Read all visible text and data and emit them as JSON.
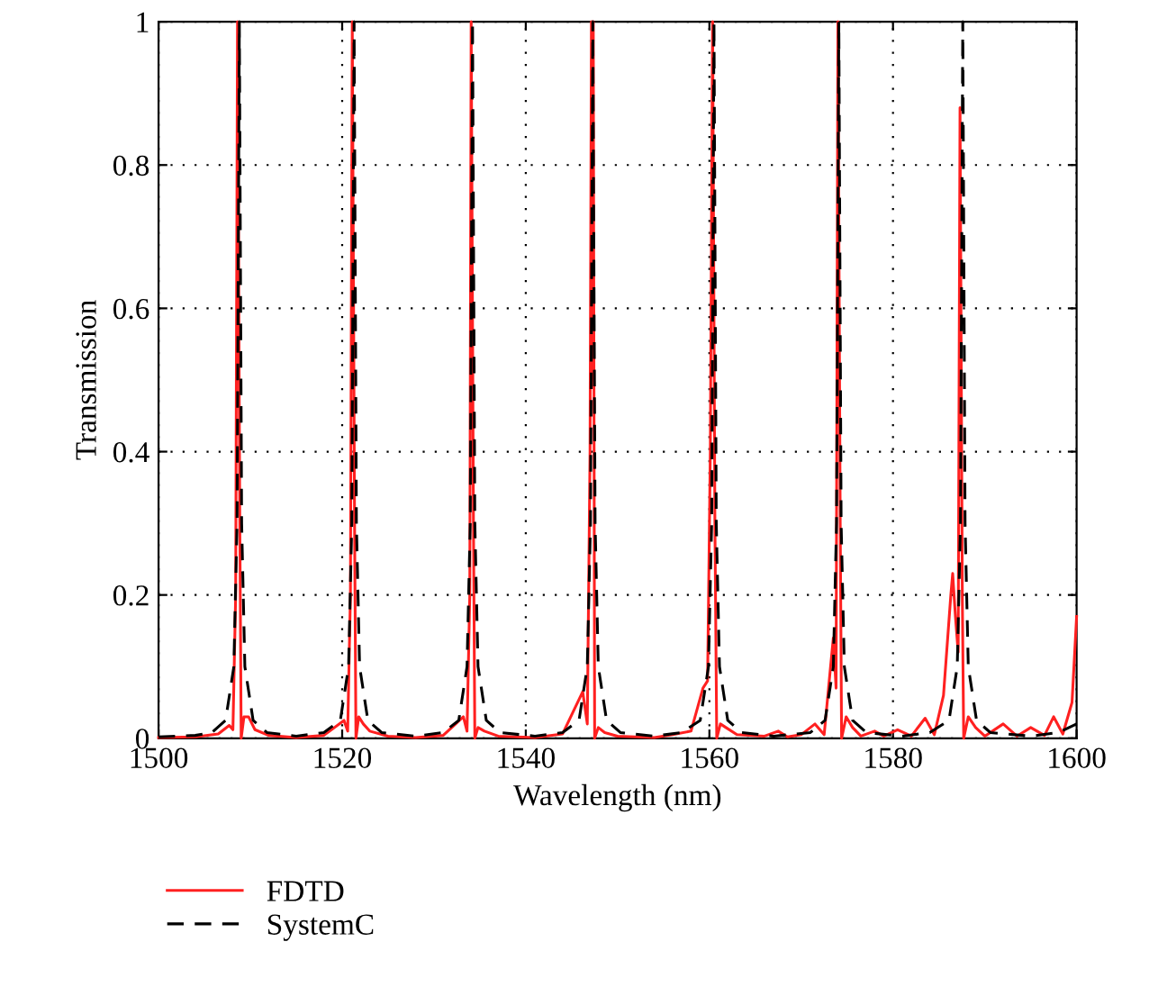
{
  "chart_data": {
    "type": "line",
    "xlabel": "Wavelength (nm)",
    "ylabel": "Transmission",
    "xlim": [
      1500,
      1600
    ],
    "ylim": [
      0,
      1
    ],
    "xticks": [
      1500,
      1520,
      1540,
      1560,
      1580,
      1600
    ],
    "yticks": [
      0,
      0.2,
      0.4,
      0.6,
      0.8,
      1
    ],
    "grid": true,
    "legend": "bottom left",
    "series": [
      {
        "name": "FDTD",
        "color": "#ff2020",
        "line_style": "solid",
        "x": [
          1500,
          1504,
          1506.5,
          1507.7,
          1508.1,
          1508.4,
          1508.6,
          1508.85,
          1509.0,
          1509.3,
          1509.8,
          1510.5,
          1512,
          1515,
          1518,
          1520.2,
          1520.6,
          1520.9,
          1521.1,
          1521.35,
          1521.5,
          1521.8,
          1522.3,
          1523,
          1525,
          1528,
          1531,
          1533.2,
          1533.6,
          1533.9,
          1534.05,
          1534.3,
          1534.45,
          1534.8,
          1535.5,
          1537,
          1541,
          1544,
          1546.2,
          1546.7,
          1547.0,
          1547.15,
          1547.25,
          1547.35,
          1547.5,
          1547.9,
          1548.6,
          1550,
          1554,
          1556,
          1558,
          1559.3,
          1559.8,
          1560.1,
          1560.35,
          1560.6,
          1560.8,
          1561.2,
          1561.8,
          1563,
          1566,
          1567.5,
          1568.5,
          1570,
          1571.5,
          1572.5,
          1573.2,
          1573.5,
          1573.8,
          1574.0,
          1574.25,
          1574.4,
          1574.9,
          1575.6,
          1576.5,
          1578,
          1579,
          1580.5,
          1582,
          1583.5,
          1584.5,
          1585.5,
          1586.3,
          1586.5,
          1586.8,
          1587.1,
          1587.3,
          1587.55,
          1587.7,
          1588.2,
          1589,
          1590,
          1592,
          1593.5,
          1595,
          1596.5,
          1597.5,
          1598.5,
          1599.5,
          1600
        ],
        "values": [
          0.001,
          0.002,
          0.006,
          0.018,
          0.012,
          0.2,
          1.0,
          0.3,
          0.0,
          0.03,
          0.03,
          0.012,
          0.004,
          0.001,
          0.004,
          0.025,
          0.01,
          0.2,
          1.0,
          0.3,
          0.0,
          0.03,
          0.02,
          0.01,
          0.003,
          0.001,
          0.004,
          0.03,
          0.01,
          0.2,
          1.0,
          0.3,
          0.0,
          0.015,
          0.01,
          0.003,
          0.001,
          0.006,
          0.065,
          0.02,
          0.4,
          1.0,
          0.5,
          1.0,
          0.0,
          0.015,
          0.008,
          0.003,
          0.001,
          0.005,
          0.01,
          0.07,
          0.08,
          0.4,
          1.0,
          0.3,
          0.0,
          0.02,
          0.015,
          0.005,
          0.003,
          0.01,
          0.002,
          0.005,
          0.02,
          0.005,
          0.1,
          0.14,
          0.07,
          1.0,
          0.3,
          0.0,
          0.03,
          0.015,
          0.003,
          0.01,
          0.003,
          0.012,
          0.003,
          0.028,
          0.005,
          0.06,
          0.2,
          0.23,
          0.17,
          0.12,
          0.88,
          0.2,
          0.0,
          0.03,
          0.015,
          0.003,
          0.02,
          0.003,
          0.015,
          0.004,
          0.03,
          0.006,
          0.05,
          0.17
        ]
      },
      {
        "name": "SystemC",
        "color": "#000000",
        "line_style": "dashed",
        "x": [
          1500,
          1504,
          1505.8,
          1507.3,
          1508.2,
          1508.55,
          1508.8,
          1509.05,
          1509.4,
          1510.3,
          1511.8,
          1515,
          1518,
          1519.8,
          1520.7,
          1521.05,
          1521.3,
          1521.55,
          1521.9,
          1522.8,
          1524.3,
          1528,
          1531,
          1532.7,
          1533.6,
          1533.95,
          1534.2,
          1534.45,
          1534.8,
          1535.7,
          1537.2,
          1541,
          1544,
          1545.8,
          1546.7,
          1547.05,
          1547.3,
          1547.55,
          1547.9,
          1548.8,
          1550.3,
          1554,
          1557,
          1559,
          1559.9,
          1560.25,
          1560.5,
          1560.75,
          1561.1,
          1562,
          1563.5,
          1567,
          1571,
          1572.6,
          1573.5,
          1573.85,
          1574.1,
          1574.35,
          1574.7,
          1575.6,
          1577.1,
          1581,
          1584,
          1586.1,
          1587,
          1587.35,
          1587.6,
          1587.85,
          1588.2,
          1589.1,
          1590.6,
          1595,
          1598,
          1600
        ],
        "values": [
          0.002,
          0.004,
          0.008,
          0.025,
          0.1,
          0.3,
          1.0,
          0.3,
          0.1,
          0.025,
          0.008,
          0.003,
          0.008,
          0.025,
          0.1,
          0.3,
          1.0,
          0.3,
          0.1,
          0.025,
          0.008,
          0.003,
          0.008,
          0.025,
          0.1,
          0.3,
          1.0,
          0.3,
          0.1,
          0.025,
          0.008,
          0.003,
          0.008,
          0.025,
          0.1,
          0.3,
          1.0,
          0.3,
          0.1,
          0.025,
          0.008,
          0.003,
          0.008,
          0.025,
          0.1,
          0.3,
          1.0,
          0.3,
          0.1,
          0.025,
          0.008,
          0.003,
          0.008,
          0.025,
          0.1,
          0.3,
          1.0,
          0.3,
          0.1,
          0.025,
          0.008,
          0.003,
          0.008,
          0.025,
          0.1,
          0.3,
          1.0,
          0.3,
          0.1,
          0.025,
          0.008,
          0.003,
          0.008,
          0.02
        ]
      }
    ]
  }
}
